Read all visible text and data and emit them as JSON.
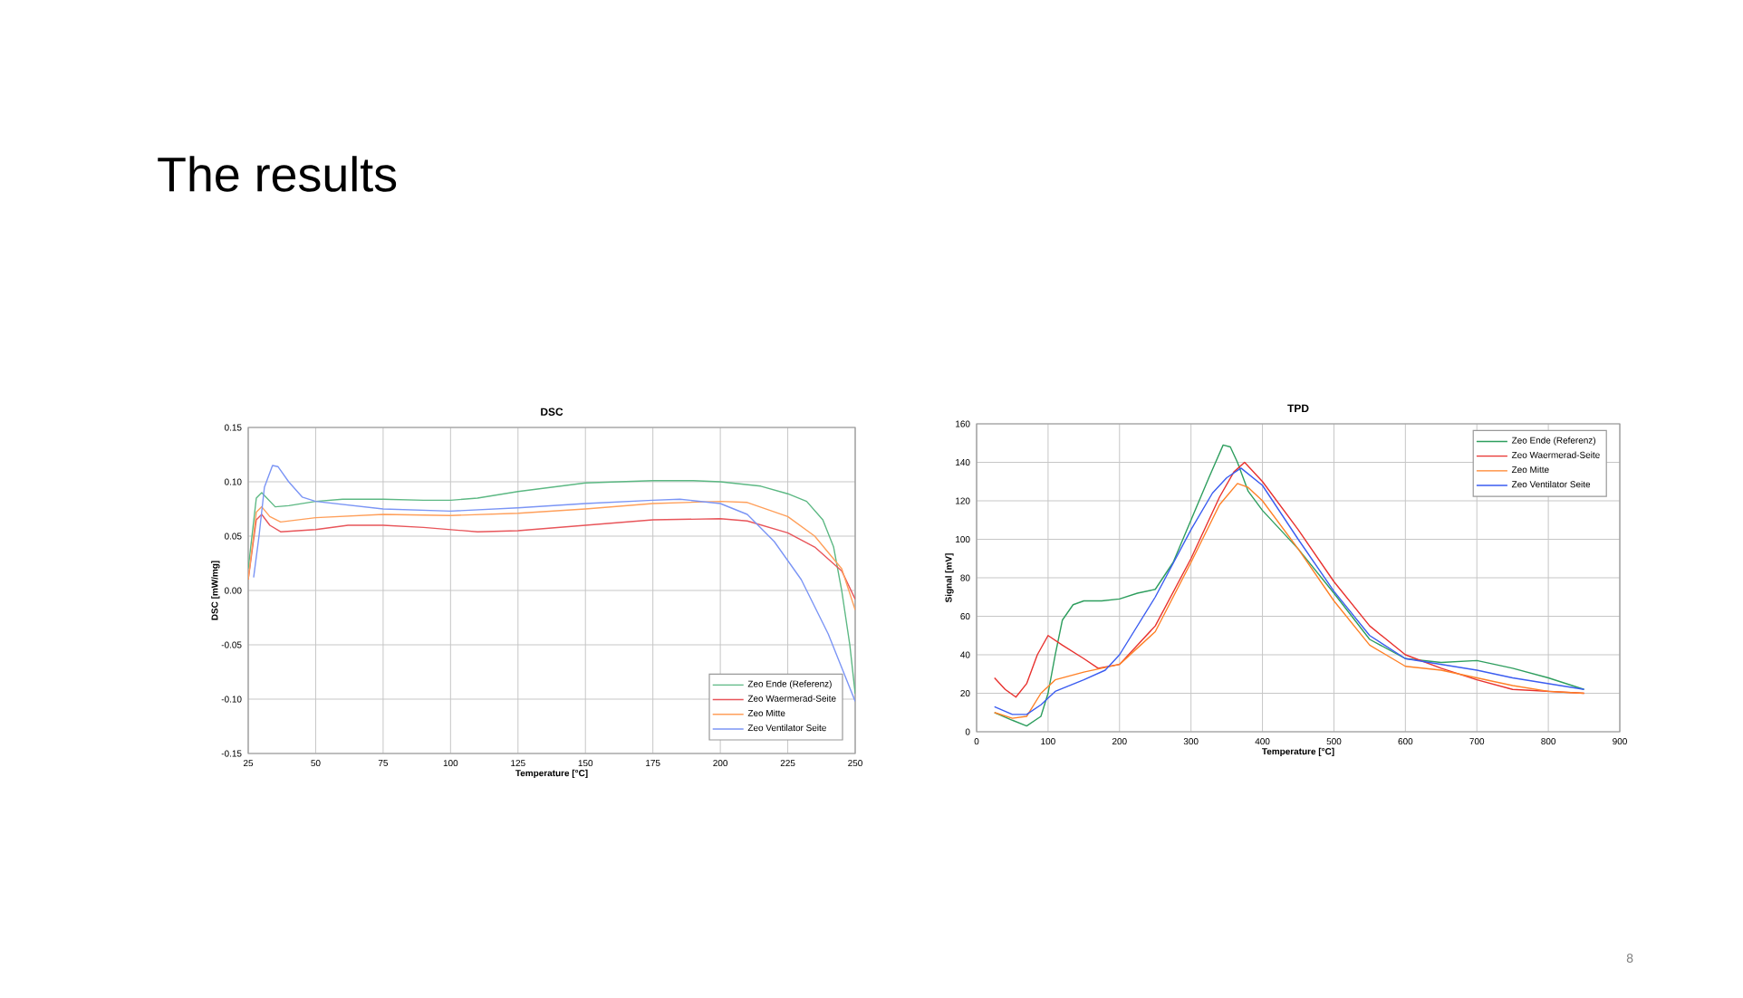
{
  "chart_data": [
    {
      "type": "line",
      "title": "DSC",
      "xlabel": "Temperature [°C]",
      "ylabel": "DSC [mW/mg]",
      "xlim": [
        25,
        250
      ],
      "ylim": [
        -0.15,
        0.15
      ],
      "xticks": [
        25,
        50,
        75,
        100,
        125,
        150,
        175,
        200,
        225,
        250
      ],
      "yticks": [
        {
          "value": -0.15,
          "label": "-0.15"
        },
        {
          "value": -0.1,
          "label": "-0.10"
        },
        -0.05,
        {
          "value": 0,
          "label": "0.00"
        },
        0.05,
        {
          "value": 0.1,
          "label": "0.10"
        },
        0.15
      ],
      "grid": true,
      "legend": "bottom right",
      "marker": "none",
      "line_style": "solid",
      "series": [
        {
          "name": "Zeo Ende (Referenz)",
          "color": "#5cb883",
          "x": [
            25,
            28,
            30,
            35,
            40,
            50,
            60,
            75,
            90,
            100,
            110,
            125,
            150,
            175,
            190,
            200,
            215,
            225,
            232,
            238,
            242,
            245,
            248,
            250
          ],
          "values": [
            0.02,
            0.085,
            0.09,
            0.077,
            0.078,
            0.082,
            0.084,
            0.084,
            0.083,
            0.083,
            0.085,
            0.091,
            0.099,
            0.101,
            0.101,
            0.1,
            0.096,
            0.089,
            0.082,
            0.065,
            0.04,
            0.0,
            -0.05,
            -0.095
          ]
        },
        {
          "name": "Zeo Waermerad-Seite",
          "color": "#e8555a",
          "x": [
            25,
            28,
            30,
            33,
            37,
            50,
            62,
            75,
            90,
            110,
            125,
            150,
            175,
            200,
            210,
            225,
            235,
            245,
            250
          ],
          "values": [
            0.01,
            0.065,
            0.07,
            0.06,
            0.054,
            0.056,
            0.06,
            0.06,
            0.058,
            0.054,
            0.055,
            0.06,
            0.065,
            0.066,
            0.064,
            0.053,
            0.04,
            0.018,
            -0.008
          ]
        },
        {
          "name": "Zeo Mitte",
          "color": "#ff9f5a",
          "x": [
            25,
            28,
            30,
            33,
            37,
            50,
            75,
            100,
            125,
            150,
            175,
            200,
            210,
            225,
            235,
            245,
            250
          ],
          "values": [
            0.01,
            0.072,
            0.077,
            0.068,
            0.063,
            0.067,
            0.07,
            0.069,
            0.071,
            0.075,
            0.08,
            0.082,
            0.081,
            0.068,
            0.05,
            0.02,
            -0.018
          ]
        },
        {
          "name": "Zeo Ventilator Seite",
          "color": "#7b95f5",
          "x": [
            27,
            29,
            31,
            34,
            36,
            40,
            45,
            50,
            75,
            100,
            125,
            150,
            175,
            185,
            200,
            210,
            220,
            230,
            240,
            250
          ],
          "values": [
            0.012,
            0.05,
            0.095,
            0.115,
            0.114,
            0.1,
            0.086,
            0.082,
            0.075,
            0.073,
            0.076,
            0.08,
            0.083,
            0.084,
            0.08,
            0.07,
            0.045,
            0.01,
            -0.04,
            -0.102
          ]
        }
      ]
    },
    {
      "type": "line",
      "title": "TPD",
      "xlabel": "Temperature [°C]",
      "ylabel": "Signal [mV]",
      "xlim": [
        0,
        900
      ],
      "ylim": [
        0,
        160
      ],
      "xticks": [
        0,
        100,
        200,
        300,
        400,
        500,
        600,
        700,
        800,
        900
      ],
      "yticks": [
        0,
        20,
        40,
        60,
        80,
        100,
        120,
        140,
        160
      ],
      "grid": true,
      "legend": "top right",
      "marker": "none",
      "line_style": "solid",
      "series": [
        {
          "name": "Zeo Ende (Referenz)",
          "color": "#2e9e5e",
          "x": [
            25,
            50,
            70,
            90,
            100,
            110,
            120,
            135,
            150,
            175,
            200,
            225,
            250,
            275,
            300,
            325,
            345,
            355,
            365,
            380,
            400,
            450,
            500,
            550,
            600,
            650,
            700,
            750,
            800,
            850
          ],
          "values": [
            10,
            6,
            3,
            8,
            20,
            40,
            58,
            66,
            68,
            68,
            69,
            72,
            74,
            88,
            110,
            132,
            149,
            148,
            140,
            125,
            115,
            95,
            72,
            48,
            38,
            36,
            37,
            33,
            28,
            22
          ]
        },
        {
          "name": "Zeo Waermerad-Seite",
          "color": "#e8312e",
          "x": [
            25,
            40,
            55,
            70,
            85,
            100,
            120,
            150,
            170,
            200,
            250,
            300,
            340,
            360,
            375,
            400,
            450,
            500,
            550,
            600,
            650,
            700,
            750,
            800,
            850
          ],
          "values": [
            28,
            22,
            18,
            25,
            40,
            50,
            45,
            38,
            33,
            35,
            55,
            90,
            122,
            135,
            140,
            130,
            105,
            78,
            55,
            40,
            33,
            27,
            22,
            21,
            20
          ]
        },
        {
          "name": "Zeo Mitte",
          "color": "#ff8026",
          "x": [
            25,
            50,
            70,
            90,
            110,
            150,
            200,
            250,
            300,
            340,
            365,
            380,
            400,
            450,
            500,
            550,
            600,
            650,
            700,
            750,
            800,
            850
          ],
          "values": [
            10,
            7,
            8,
            20,
            27,
            31,
            35,
            52,
            88,
            118,
            129,
            127,
            120,
            95,
            68,
            45,
            34,
            32,
            28,
            24,
            21,
            20
          ]
        },
        {
          "name": "Zeo Ventilator Seite",
          "color": "#3a5cf0",
          "x": [
            25,
            50,
            70,
            90,
            110,
            150,
            180,
            200,
            250,
            300,
            330,
            350,
            370,
            400,
            450,
            500,
            550,
            600,
            650,
            700,
            750,
            800,
            850
          ],
          "values": [
            13,
            9,
            9,
            14,
            21,
            27,
            32,
            40,
            70,
            105,
            124,
            132,
            137,
            128,
            100,
            73,
            50,
            38,
            35,
            32,
            28,
            25,
            22
          ]
        }
      ]
    },
    {
      "type": "other",
      "title": "The results",
      "annotations": [
        "8"
      ]
    }
  ]
}
